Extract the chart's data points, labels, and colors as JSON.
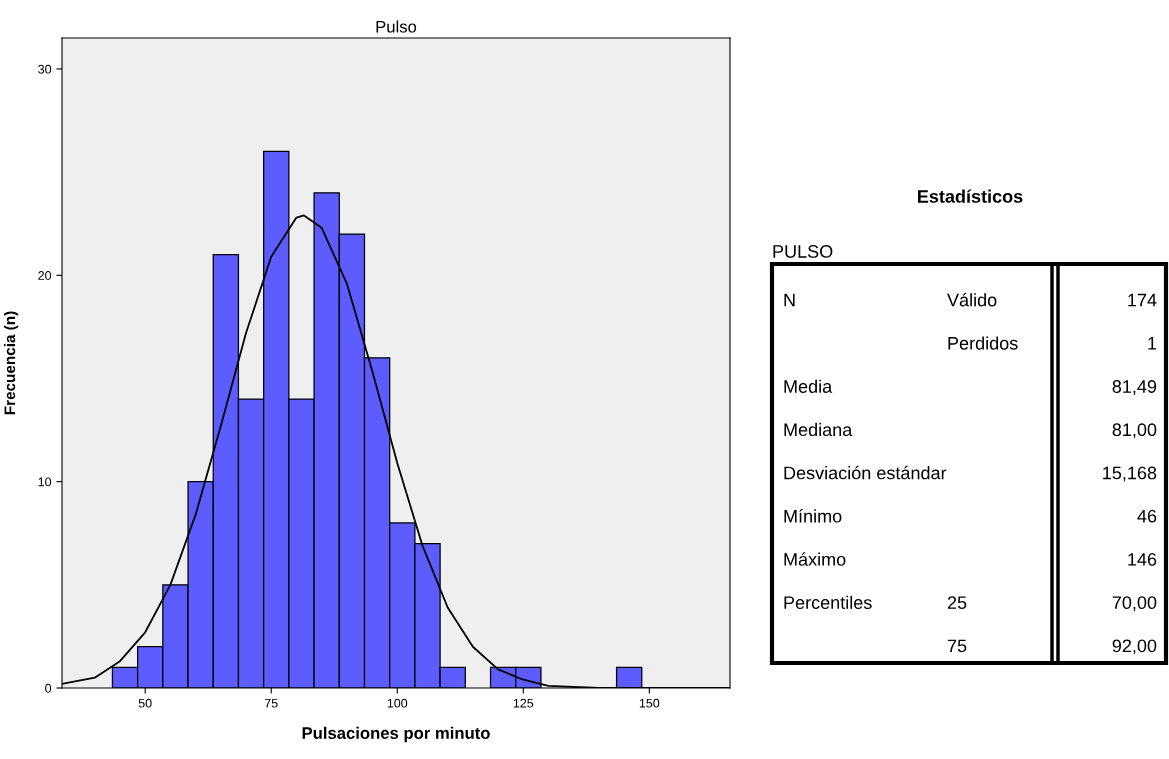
{
  "chart_data": [
    {
      "type": "histogram",
      "title": "Pulso",
      "xlabel": "Pulsaciones por minuto",
      "ylabel": "Frecuencia (n)",
      "bins": [
        43.5,
        48.5,
        53.5,
        58.5,
        63.5,
        68.5,
        73.5,
        78.5,
        83.5,
        88.5,
        93.5,
        98.5,
        103.5,
        108.5,
        113.5,
        118.5,
        123.5,
        128.5,
        133.5,
        138.5,
        143.5,
        148.5
      ],
      "values": [
        1,
        2,
        5,
        10,
        21,
        14,
        26,
        14,
        24,
        22,
        16,
        8,
        7,
        1,
        0,
        1,
        1,
        0,
        0,
        0,
        1
      ],
      "color": "#5c5cff",
      "series": [
        {
          "type": "line",
          "color": "#000000",
          "x": [
            33.5,
            40,
            45,
            50,
            55,
            60,
            65,
            70,
            75,
            80,
            81.5,
            85,
            90,
            95,
            100,
            105,
            110,
            115,
            120,
            125,
            130,
            140,
            150,
            166
          ],
          "values": [
            0.2,
            0.5,
            1.3,
            2.7,
            5.0,
            8.4,
            12.7,
            17.2,
            20.9,
            22.8,
            22.9,
            22.3,
            19.6,
            15.4,
            10.9,
            6.9,
            3.9,
            2.0,
            0.9,
            0.4,
            0.1,
            0,
            0,
            0
          ]
        }
      ],
      "xlim": [
        33.5,
        166
      ],
      "xticks": [
        50,
        75,
        100,
        125,
        150
      ],
      "ylim": [
        0,
        31.5
      ],
      "yticks": [
        0,
        10,
        20,
        30
      ],
      "grid": false,
      "line_style": "solid"
    },
    {
      "type": "other",
      "title": "Estadísticos",
      "subtitle": "PULSO",
      "annotations": [
        "N",
        "Válido",
        "174",
        null,
        "Perdidos",
        "1",
        "Media",
        null,
        "81,49",
        "Mediana",
        null,
        "81,00",
        "Desviación estándar",
        null,
        "15,168",
        "Mínimo",
        null,
        "46",
        "Máximo",
        null,
        "146",
        "Percentiles",
        "25",
        "70,00",
        null,
        "75",
        "92,00"
      ]
    }
  ]
}
